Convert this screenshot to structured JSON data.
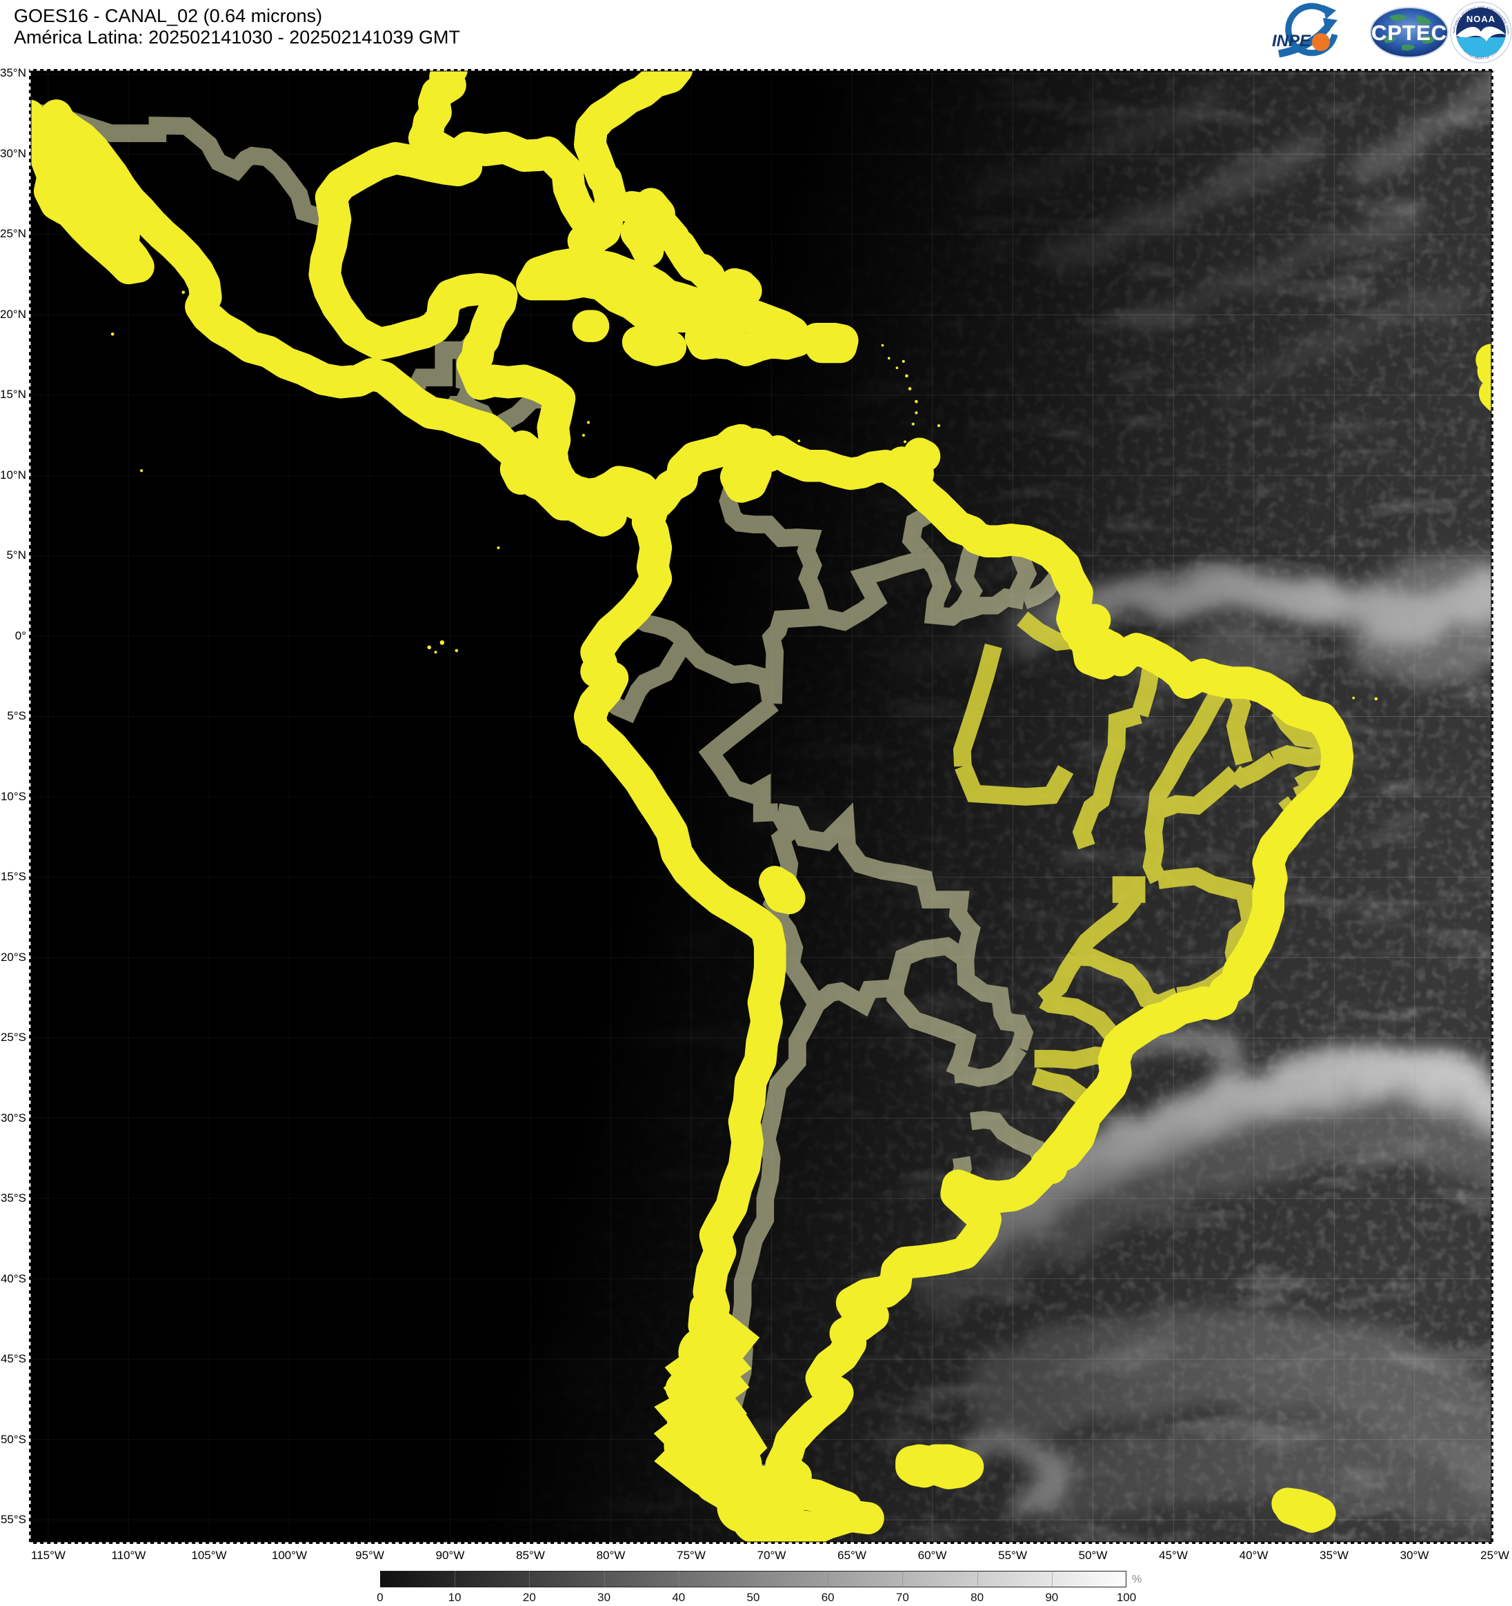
{
  "header": {
    "title_line1": "GOES16 - CANAL_02 (0.64 microns)",
    "title_line2": "América Latina: 202502141030 - 202502141039 GMT"
  },
  "logos": {
    "inpe_label": "INPE",
    "cptec_label": "CPTEC",
    "noaa_label": "NOAA",
    "noaa_ring_top": "NATIONAL OCEANIC AND ATMOSPHERIC ADMINISTRATION",
    "noaa_ring_bottom": "U.S. DEPARTMENT OF COMMERCE"
  },
  "map": {
    "lat_labels": [
      "35°N",
      "30°N",
      "25°N",
      "20°N",
      "15°N",
      "10°N",
      "5°N",
      "0°",
      "5°S",
      "10°S",
      "15°S",
      "20°S",
      "25°S",
      "30°S",
      "35°S",
      "40°S",
      "45°S",
      "50°S",
      "55°S"
    ],
    "lon_labels": [
      "115°W",
      "110°W",
      "105°W",
      "100°W",
      "95°W",
      "90°W",
      "85°W",
      "80°W",
      "75°W",
      "70°W",
      "65°W",
      "60°W",
      "55°W",
      "50°W",
      "45°W",
      "40°W",
      "35°W",
      "30°W",
      "25°W"
    ]
  },
  "colorbar": {
    "ticks": [
      "0",
      "10",
      "20",
      "30",
      "40",
      "50",
      "60",
      "70",
      "80",
      "90",
      "100"
    ],
    "unit": "%",
    "min": 0,
    "max": 100
  },
  "colors": {
    "coastline": "#f2ee2a",
    "country_border": "#b8b890",
    "state_border": "#ded83a",
    "map_background": "#000000",
    "page_background": "#ffffff",
    "graticule": "#9a9a9a",
    "inpe_blue": "#1c69ad",
    "inpe_orange": "#ee7623",
    "cptec_blue": "#16377c",
    "noaa_navy": "#16316e",
    "noaa_cyan": "#35b5e5"
  }
}
